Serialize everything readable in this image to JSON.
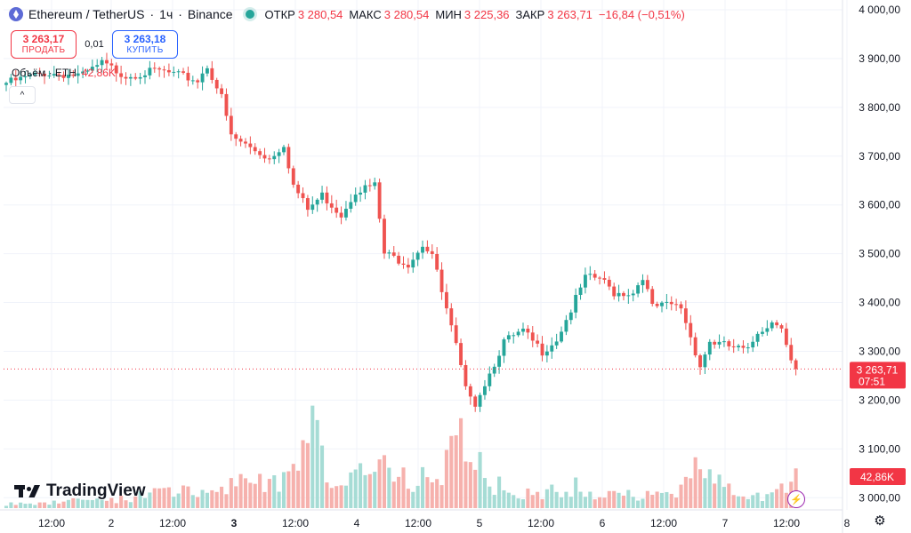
{
  "header": {
    "symbol": "Ethereum / TetherUS",
    "interval": "1ч",
    "exchange": "Binance",
    "separator": "·",
    "open_label": "ОТКР",
    "open": "3 280,54",
    "high_label": "МАКС",
    "high": "3 280,54",
    "low_label": "МИН",
    "low": "3 225,36",
    "close_label": "ЗАКР",
    "close": "3 263,71",
    "change": "−16,84 (−0,51%)"
  },
  "trade": {
    "sell_price": "3 263,17",
    "sell_label": "ПРОДАТЬ",
    "spread": "0,01",
    "buy_price": "3 263,18",
    "buy_label": "КУПИТЬ"
  },
  "volume_legend": {
    "label": "Объём · ETH",
    "value": "42,86K"
  },
  "collapse_icon": "chevron-up-icon",
  "branding": {
    "logo_text": "TradingView"
  },
  "colors": {
    "up": "#26a69a",
    "down": "#ef5350",
    "vol_up": "#a6dcd5",
    "vol_down": "#f6b1ad",
    "last_price": "#f23645"
  },
  "chart_data": {
    "type": "candlestick",
    "price_axis_ticks": [
      "4 000,00",
      "3 900,00",
      "3 800,00",
      "3 700,00",
      "3 600,00",
      "3 500,00",
      "3 400,00",
      "3 300,00",
      "3 200,00",
      "3 100,00",
      "3 000,00"
    ],
    "price_axis_values": [
      4000,
      3900,
      3800,
      3700,
      3600,
      3500,
      3400,
      3300,
      3200,
      3100,
      3000
    ],
    "time_axis_ticks": [
      "12:00",
      "2",
      "12:00",
      "3",
      "12:00",
      "4",
      "12:00",
      "5",
      "12:00",
      "6",
      "12:00",
      "7",
      "12:00",
      "8"
    ],
    "time_axis_bold": [
      false,
      false,
      false,
      true,
      false,
      false,
      false,
      false,
      false,
      false,
      false,
      false,
      false,
      false
    ],
    "ylim": [
      2975,
      4020
    ],
    "last_price": "3 263,71",
    "last_price_value": 3263.71,
    "countdown": "07:51",
    "volume_label": "42,86K",
    "keypoints": [
      [
        0,
        3850
      ],
      [
        8,
        3870
      ],
      [
        16,
        3865
      ],
      [
        20,
        3890
      ],
      [
        25,
        3865
      ],
      [
        32,
        3875
      ],
      [
        40,
        3855
      ],
      [
        42,
        3885
      ],
      [
        45,
        3820
      ],
      [
        47,
        3740
      ],
      [
        55,
        3695
      ],
      [
        58,
        3725
      ],
      [
        60,
        3640
      ],
      [
        63,
        3590
      ],
      [
        66,
        3620
      ],
      [
        70,
        3580
      ],
      [
        73,
        3630
      ],
      [
        77,
        3640
      ],
      [
        79,
        3500
      ],
      [
        84,
        3480
      ],
      [
        87,
        3520
      ],
      [
        89,
        3500
      ],
      [
        91,
        3420
      ],
      [
        94,
        3310
      ],
      [
        96,
        3220
      ],
      [
        97,
        3215
      ],
      [
        98,
        3195
      ],
      [
        101,
        3255
      ],
      [
        104,
        3320
      ],
      [
        108,
        3340
      ],
      [
        112,
        3300
      ],
      [
        115,
        3325
      ],
      [
        118,
        3385
      ],
      [
        121,
        3450
      ],
      [
        124,
        3450
      ],
      [
        127,
        3420
      ],
      [
        131,
        3420
      ],
      [
        133,
        3455
      ],
      [
        135,
        3390
      ],
      [
        139,
        3395
      ],
      [
        141,
        3390
      ],
      [
        143,
        3330
      ],
      [
        145,
        3270
      ],
      [
        147,
        3320
      ],
      [
        151,
        3310
      ],
      [
        155,
        3300
      ],
      [
        157,
        3340
      ],
      [
        160,
        3360
      ],
      [
        162,
        3355
      ],
      [
        164,
        3280
      ],
      [
        165,
        3263.71
      ]
    ],
    "volume_keypoints": [
      [
        0,
        6
      ],
      [
        20,
        10
      ],
      [
        36,
        22
      ],
      [
        44,
        18
      ],
      [
        50,
        38
      ],
      [
        60,
        40
      ],
      [
        64,
        90
      ],
      [
        70,
        20
      ],
      [
        79,
        75
      ],
      [
        82,
        45
      ],
      [
        90,
        30
      ],
      [
        94,
        80
      ],
      [
        96,
        110
      ],
      [
        98,
        60
      ],
      [
        100,
        45
      ],
      [
        104,
        22
      ],
      [
        112,
        18
      ],
      [
        118,
        28
      ],
      [
        124,
        20
      ],
      [
        132,
        15
      ],
      [
        140,
        18
      ],
      [
        144,
        55
      ],
      [
        150,
        25
      ],
      [
        158,
        12
      ],
      [
        165,
        35
      ]
    ]
  }
}
